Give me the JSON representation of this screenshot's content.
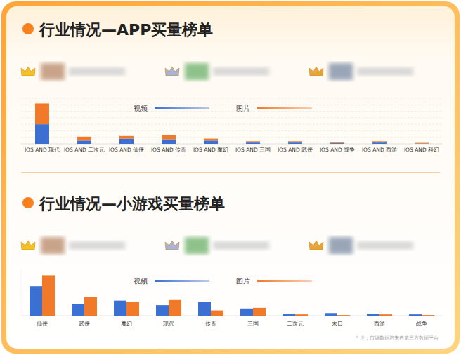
{
  "chart_data": [
    {
      "type": "bar",
      "title": "行业情况—APP买量榜单",
      "stacked": true,
      "categories": [
        "IOS AND 现代",
        "IOS AND 二次元",
        "IOS AND 仙侠",
        "IOS AND 传奇",
        "IOS AND 魔幻",
        "IOS AND 三国",
        "IOS AND 武侠",
        "IOS AND 战争",
        "IOS AND 西游",
        "IOS AND 科幻"
      ],
      "series": [
        {
          "name": "视频",
          "color": "#3b6fd1",
          "values": [
            30,
            5,
            8,
            7,
            5,
            2,
            2,
            1,
            2,
            0.5
          ]
        },
        {
          "name": "图片",
          "color": "#f07a2a",
          "values": [
            32,
            6,
            4,
            7,
            3,
            2,
            2,
            1,
            2,
            1
          ]
        }
      ],
      "ylim": [
        0,
        70
      ],
      "yticks": [
        0,
        10,
        20,
        30,
        40,
        50,
        60,
        70
      ],
      "grid": true,
      "tick_labels": false
    },
    {
      "type": "bar",
      "title": "行业情况—小游戏买量榜单",
      "categories": [
        "仙侠",
        "武侠",
        "魔幻",
        "现代",
        "传奇",
        "三国",
        "二次元",
        "末日",
        "西游",
        "战争"
      ],
      "series": [
        {
          "name": "视频",
          "color": "#3b6fd1",
          "values": [
            45,
            18,
            23,
            16,
            21,
            11,
            3,
            4,
            3,
            2
          ]
        },
        {
          "name": "图片",
          "color": "#f07a2a",
          "values": [
            62,
            28,
            21,
            25,
            8,
            12,
            2,
            1,
            2,
            1
          ]
        }
      ],
      "ylim": [
        0,
        70
      ],
      "grid": false,
      "tick_labels": false,
      "annotations": [
        "* 注：市场数据均来自第三方数据平台"
      ]
    }
  ]
}
